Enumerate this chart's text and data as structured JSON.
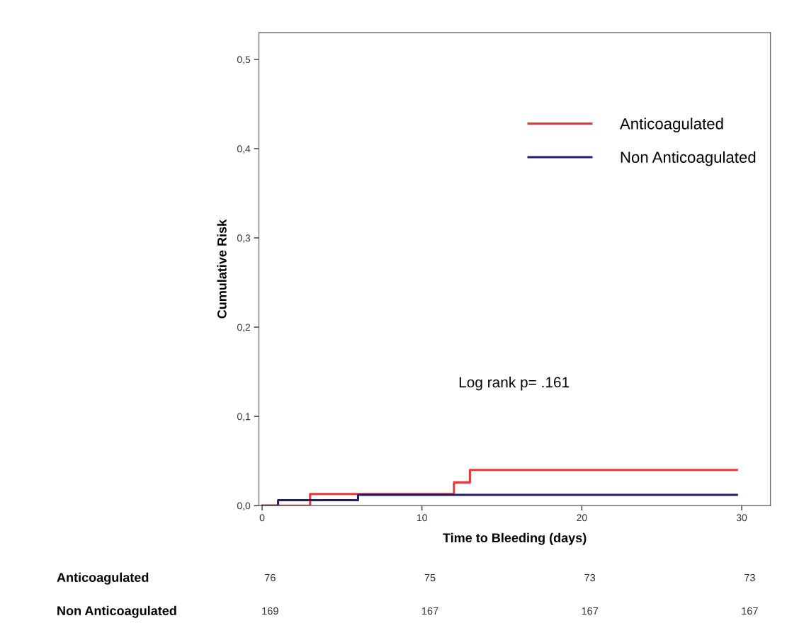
{
  "chart_data": {
    "type": "step",
    "xlabel": "Time to Bleeding (days)",
    "ylabel": "Cumulative Risk",
    "xlim": [
      -0.2,
      31.8
    ],
    "ylim": [
      0,
      0.53
    ],
    "xticks": [
      0,
      10,
      20,
      30
    ],
    "yticks": [
      {
        "value": 0,
        "label": "0,0"
      },
      {
        "value": 0.1,
        "label": "0,1"
      },
      {
        "value": 0.2,
        "label": "0,2"
      },
      {
        "value": 0.3,
        "label": "0,3"
      },
      {
        "value": 0.4,
        "label": "0,4"
      },
      {
        "value": 0.5,
        "label": "0,5"
      }
    ],
    "series": [
      {
        "name": "Anticoagulated",
        "color": "#e8383d",
        "x": [
          0,
          3,
          12,
          13,
          29.7
        ],
        "values": [
          0,
          0.013,
          0.026,
          0.04,
          0.04
        ]
      },
      {
        "name": "Non Anticoagulated",
        "color": "#1e1e6e",
        "x": [
          0,
          1,
          6,
          29.7
        ],
        "values": [
          0,
          0.006,
          0.012,
          0.012
        ]
      }
    ],
    "legend": "top right",
    "grid": false,
    "annotations": [
      "Log rank p= .161",
      "Anticoagulated",
      "76",
      "75",
      "73",
      "73",
      "Non Anticoagulated",
      "169",
      "167",
      "167",
      "167"
    ]
  }
}
